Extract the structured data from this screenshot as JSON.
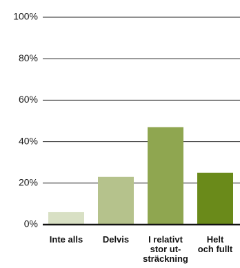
{
  "chart_data": {
    "type": "bar",
    "title": "",
    "xlabel": "",
    "ylabel": "",
    "ylim": [
      0,
      100
    ],
    "yticks": [
      0,
      20,
      40,
      60,
      80,
      100
    ],
    "ytick_labels": [
      "0%",
      "20%",
      "40%",
      "60%",
      "80%",
      "100%"
    ],
    "grid": true,
    "categories": [
      [
        "Inte alls"
      ],
      [
        "Delvis"
      ],
      [
        "I relativt",
        "stor ut-",
        "sträckning"
      ],
      [
        "Helt",
        "och fullt"
      ]
    ],
    "values": [
      6,
      23,
      47,
      25
    ],
    "colors": [
      "#d8e0c4",
      "#b5c28c",
      "#8fa650",
      "#6a8a1a"
    ],
    "grid_color": "#222222",
    "axis_color": "#111111"
  }
}
